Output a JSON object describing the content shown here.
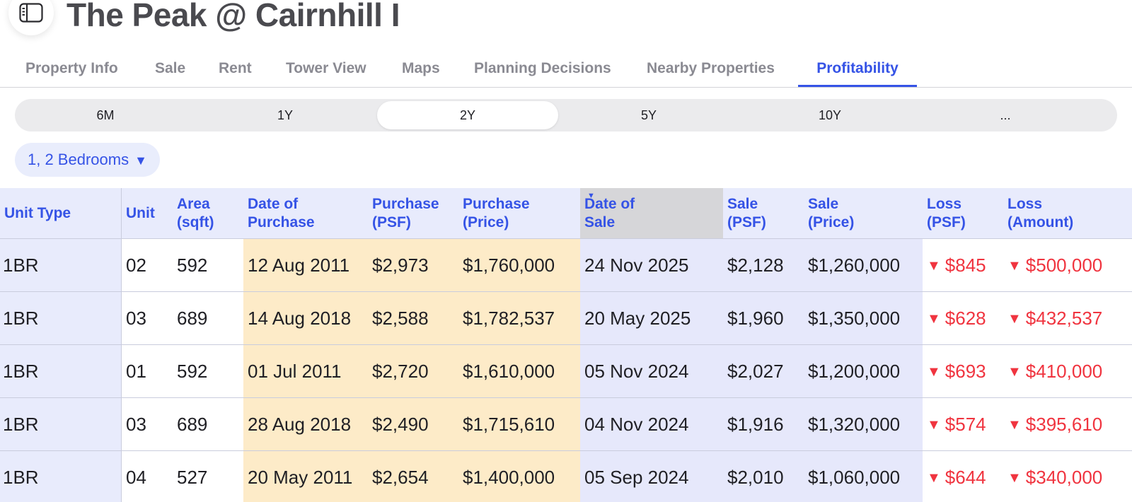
{
  "header": {
    "title": "The Peak @ Cairnhill I",
    "sidebar_icon": "sidebar-toggle-icon"
  },
  "tabs": [
    {
      "label": "Property Info",
      "active": false
    },
    {
      "label": "Sale",
      "active": false
    },
    {
      "label": "Rent",
      "active": false
    },
    {
      "label": "Tower View",
      "active": false
    },
    {
      "label": "Maps",
      "active": false
    },
    {
      "label": "Planning Decisions",
      "active": false
    },
    {
      "label": "Nearby Properties",
      "active": false
    },
    {
      "label": "Profitability",
      "active": true
    }
  ],
  "periods": [
    {
      "label": "6M",
      "active": false
    },
    {
      "label": "1Y",
      "active": false
    },
    {
      "label": "2Y",
      "active": true
    },
    {
      "label": "5Y",
      "active": false
    },
    {
      "label": "10Y",
      "active": false
    },
    {
      "label": "...",
      "active": false
    }
  ],
  "filter": {
    "bedrooms_label": "1, 2 Bedrooms",
    "caret": "▼"
  },
  "table": {
    "headers": [
      {
        "line1": "Unit Type",
        "line2": ""
      },
      {
        "line1": "Unit",
        "line2": ""
      },
      {
        "line1": "Area",
        "line2": "(sqft)"
      },
      {
        "line1": "Date of",
        "line2": "Purchase"
      },
      {
        "line1": "Purchase",
        "line2": "(PSF)"
      },
      {
        "line1": "Purchase",
        "line2": "(Price)"
      },
      {
        "line1": "Date of",
        "line2": "Sale"
      },
      {
        "line1": "Sale",
        "line2": "(PSF)"
      },
      {
        "line1": "Sale",
        "line2": "(Price)"
      },
      {
        "line1": "Loss",
        "line2": "(PSF)"
      },
      {
        "line1": "Loss",
        "line2": "(Amount)"
      }
    ],
    "sort_indicator": "▼",
    "loss_marker": "▼",
    "rows": [
      {
        "unit_type": "1BR",
        "unit": "02",
        "area": "592",
        "purchase_date": "12 Aug 2011",
        "purchase_psf": "$2,973",
        "purchase_price": "$1,760,000",
        "sale_date": "24 Nov 2025",
        "sale_psf": "$2,128",
        "sale_price": "$1,260,000",
        "loss_psf": "$845",
        "loss_amount": "$500,000"
      },
      {
        "unit_type": "1BR",
        "unit": "03",
        "area": "689",
        "purchase_date": "14 Aug 2018",
        "purchase_psf": "$2,588",
        "purchase_price": "$1,782,537",
        "sale_date": "20 May 2025",
        "sale_psf": "$1,960",
        "sale_price": "$1,350,000",
        "loss_psf": "$628",
        "loss_amount": "$432,537"
      },
      {
        "unit_type": "1BR",
        "unit": "01",
        "area": "592",
        "purchase_date": "01 Jul 2011",
        "purchase_psf": "$2,720",
        "purchase_price": "$1,610,000",
        "sale_date": "05 Nov 2024",
        "sale_psf": "$2,027",
        "sale_price": "$1,200,000",
        "loss_psf": "$693",
        "loss_amount": "$410,000"
      },
      {
        "unit_type": "1BR",
        "unit": "03",
        "area": "689",
        "purchase_date": "28 Aug 2018",
        "purchase_psf": "$2,490",
        "purchase_price": "$1,715,610",
        "sale_date": "04 Nov 2024",
        "sale_psf": "$1,916",
        "sale_price": "$1,320,000",
        "loss_psf": "$574",
        "loss_amount": "$395,610"
      },
      {
        "unit_type": "1BR",
        "unit": "04",
        "area": "527",
        "purchase_date": "20 May 2011",
        "purchase_psf": "$2,654",
        "purchase_price": "$1,400,000",
        "sale_date": "05 Sep 2024",
        "sale_psf": "$2,010",
        "sale_price": "$1,060,000",
        "loss_psf": "$644",
        "loss_amount": "$340,000"
      }
    ]
  }
}
